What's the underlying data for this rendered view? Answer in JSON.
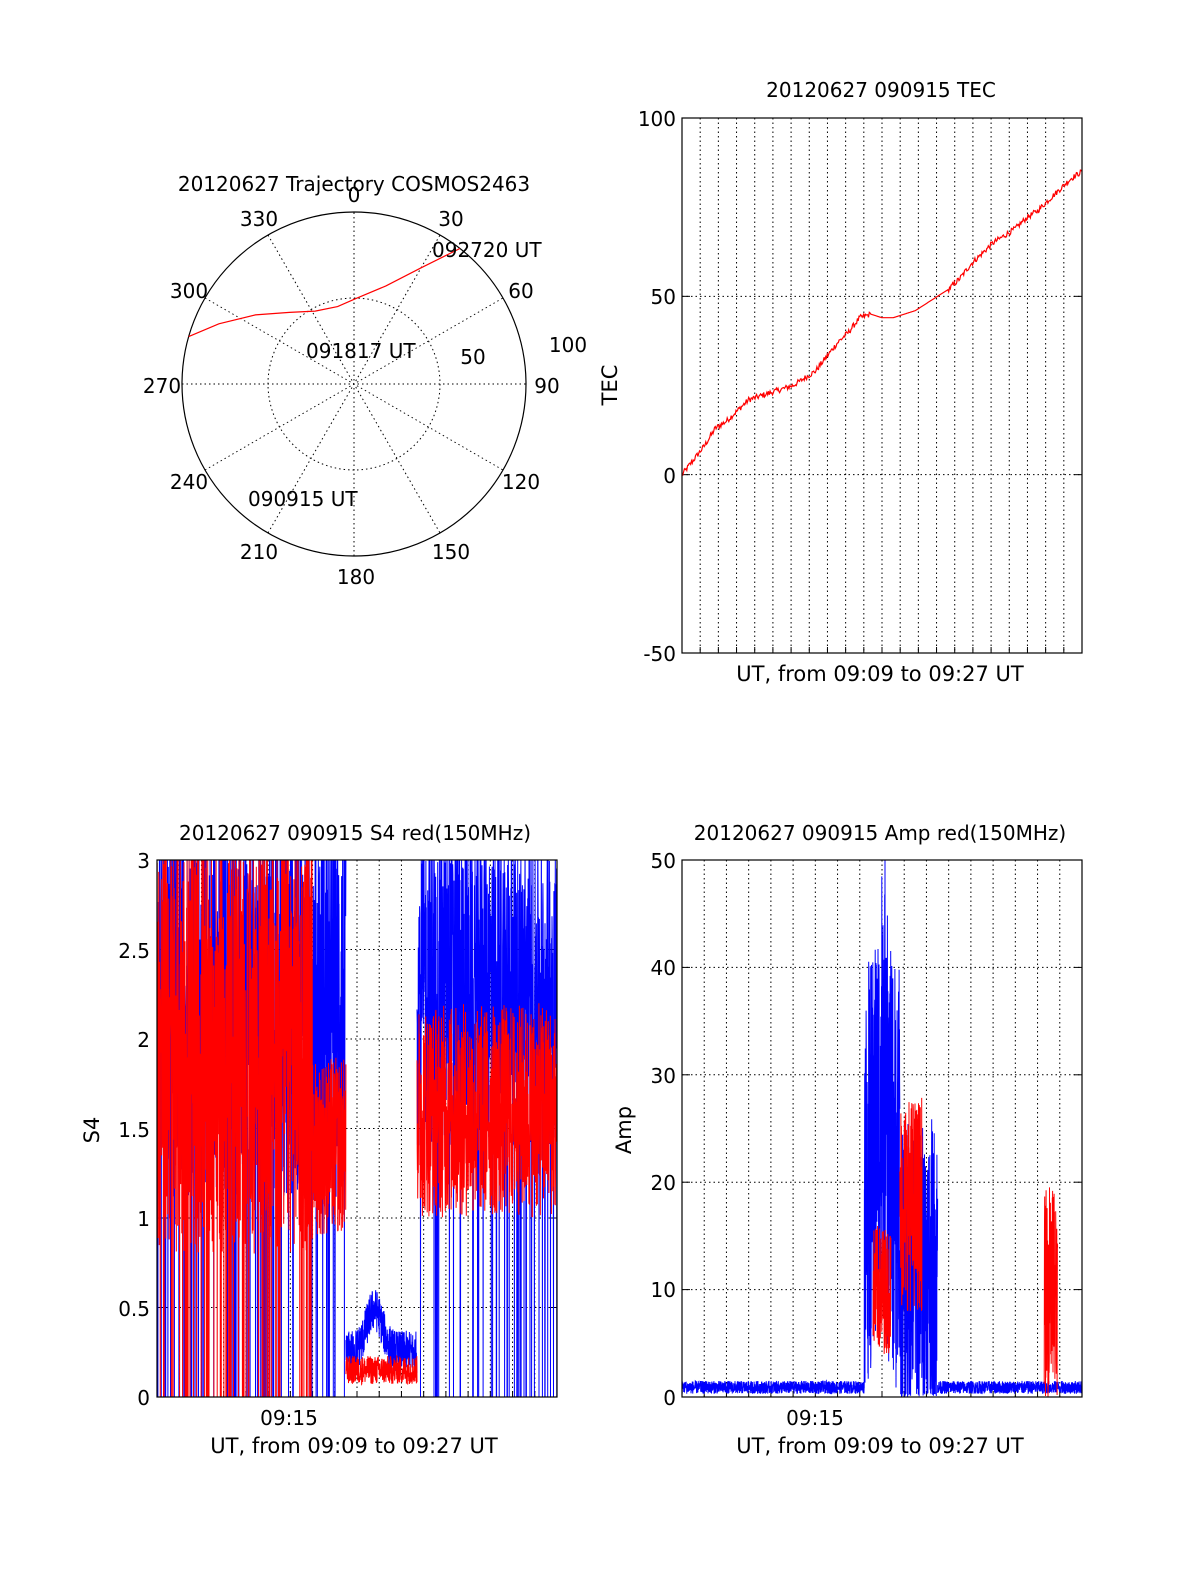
{
  "chart_data": [
    {
      "type": "polar-trajectory",
      "title": "20120627 Trajectory COSMOS2463",
      "azimuth_labels": [
        "0",
        "30",
        "60",
        "90",
        "120",
        "150",
        "180",
        "210",
        "240",
        "270",
        "300",
        "330"
      ],
      "ring_labels": [
        "50",
        "100"
      ],
      "track": [
        [
          38,
          100
        ],
        [
          30,
          78
        ],
        [
          18,
          60
        ],
        [
          2,
          50
        ],
        [
          -12,
          46
        ],
        [
          -28,
          48
        ],
        [
          -42,
          56
        ],
        [
          -55,
          70
        ],
        [
          -66,
          86
        ],
        [
          -74,
          100
        ]
      ],
      "annotations": [
        "092720 UT",
        "091817 UT",
        "090915 UT"
      ],
      "grid": true
    },
    {
      "type": "line",
      "title": "20120627 090915 TEC",
      "xlabel": "UT, from 09:09 to 09:27 UT",
      "ylabel": "TEC",
      "xlim": [
        0,
        18
      ],
      "ylim": [
        -50,
        100
      ],
      "yticks": [
        "100",
        "50",
        "0",
        "-50"
      ],
      "series": [
        {
          "color": "#ff0000",
          "x": [
            0,
            0.5,
            1,
            1.5,
            2,
            2.5,
            3,
            3.5,
            4,
            4.5,
            5,
            5.5,
            6,
            6.5,
            7,
            7.5,
            8,
            8.5,
            9,
            9.5,
            10,
            10.5,
            11,
            11.5,
            12,
            12.5,
            13,
            13.5,
            14,
            14.5,
            15,
            15.5,
            16,
            16.5,
            17,
            17.5,
            18
          ],
          "values": [
            0,
            4,
            8,
            13,
            15,
            18,
            21,
            22,
            23,
            24,
            25,
            27,
            29,
            33,
            37,
            40,
            44,
            45,
            44,
            44,
            45,
            46,
            48,
            50,
            52,
            55,
            59,
            62,
            65,
            67,
            69,
            72,
            74,
            77,
            80,
            83,
            85
          ]
        }
      ],
      "grid": true
    },
    {
      "type": "line",
      "title": "20120627 090915 S4 red(150MHz)",
      "xlabel": "UT, from 09:09 to 09:27 UT",
      "ylabel": "S4",
      "xlim": [
        0,
        18
      ],
      "ylim": [
        0,
        3
      ],
      "xticks": [
        "09:15"
      ],
      "yticks": [
        "3",
        "2.5",
        "2",
        "1.5",
        "1",
        "0.5",
        "0"
      ],
      "series": [
        {
          "color": "#0000ff",
          "segments": [
            {
              "x_range": [
                0,
                8.5
              ],
              "level": 2.2,
              "spread": 1.1,
              "dropouts": true
            },
            {
              "x_range": [
                8.5,
                11.7
              ],
              "level": 0.25,
              "spread": 0.12,
              "bump": 0.6
            },
            {
              "x_range": [
                11.7,
                18
              ],
              "level": 2.3,
              "spread": 0.9,
              "dropouts": true
            }
          ]
        },
        {
          "color": "#ff0000",
          "segments": [
            {
              "x_range": [
                0,
                7.0
              ],
              "level": 2.0,
              "spread": 1.2,
              "dropouts": true
            },
            {
              "x_range": [
                7.0,
                8.5
              ],
              "level": 1.4,
              "spread": 0.5
            },
            {
              "x_range": [
                8.5,
                11.7
              ],
              "level": 0.15,
              "spread": 0.08
            },
            {
              "x_range": [
                11.7,
                18
              ],
              "level": 1.6,
              "spread": 0.6
            }
          ]
        }
      ],
      "grid": true
    },
    {
      "type": "line",
      "title": "20120627 090915 Amp red(150MHz)",
      "xlabel": "UT, from 09:09 to 09:27 UT",
      "ylabel": "Amp",
      "xlim": [
        0,
        18
      ],
      "ylim": [
        0,
        50
      ],
      "xticks": [
        "09:15"
      ],
      "yticks": [
        "50",
        "40",
        "30",
        "20",
        "10",
        "0"
      ],
      "series": [
        {
          "color": "#0000ff",
          "segments": [
            {
              "x_range": [
                0,
                8.2
              ],
              "level": 0.9,
              "spread": 0.6
            },
            {
              "x_range": [
                8.2,
                9.8
              ],
              "level": 20,
              "spread": 20,
              "peak": 49
            },
            {
              "x_range": [
                9.8,
                11.5
              ],
              "level": 12,
              "spread": 14
            },
            {
              "x_range": [
                11.5,
                18
              ],
              "level": 0.9,
              "spread": 0.6
            }
          ]
        },
        {
          "color": "#ff0000",
          "segments": [
            {
              "x_range": [
                8.6,
                9.4
              ],
              "level": 10,
              "spread": 6
            },
            {
              "x_range": [
                9.8,
                10.8
              ],
              "level": 18,
              "spread": 10
            },
            {
              "x_range": [
                16.3,
                16.9
              ],
              "level": 9,
              "spread": 10,
              "peak": 19
            }
          ]
        }
      ],
      "grid": true
    }
  ]
}
